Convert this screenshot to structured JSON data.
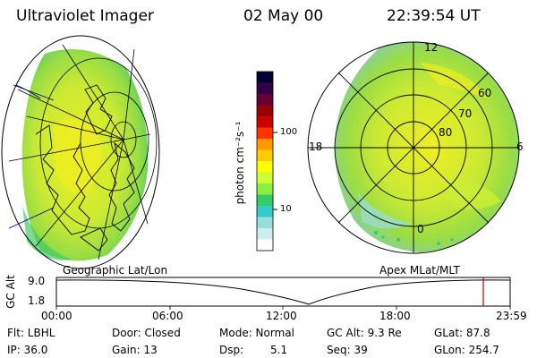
{
  "header": {
    "title": "Ultraviolet Imager",
    "date": "02 May 00",
    "time": "22:39:54 UT"
  },
  "colorbar": {
    "unit_label": "photon cm⁻²s⁻¹",
    "ticks": [
      "100",
      "10"
    ],
    "colors": [
      "#000033",
      "#330044",
      "#660033",
      "#990000",
      "#cc0000",
      "#ff3300",
      "#ff9900",
      "#ffcc00",
      "#ffff00",
      "#ccff33",
      "#88ee44",
      "#33cc66",
      "#33cccc",
      "#99dddd",
      "#cceeee",
      "#ffffff"
    ]
  },
  "left_map": {
    "label": "Geographic Lat/Lon"
  },
  "right_map": {
    "label": "Apex MLat/MLT",
    "mlt_labels": [
      "12",
      "18",
      "6",
      "0"
    ],
    "lat_labels": [
      "60",
      "70",
      "80"
    ]
  },
  "altitude_plot": {
    "ylabel": "GC Alt",
    "yticks": [
      "9.0",
      "1.8"
    ],
    "xticks": [
      "00:00",
      "06:00",
      "12:00",
      "18:00",
      "23:59"
    ],
    "marker_color": "#cc0000"
  },
  "info": {
    "flt": "Flt: LBHL",
    "ip": "IP: 36.0",
    "door": "Door: Closed",
    "gain": "Gain: 13",
    "mode": "Mode: Normal",
    "dsp_label": "Dsp:",
    "dsp_value": "5.1",
    "gcalt": "GC Alt: 9.3 Re",
    "seq": "Seq: 39",
    "glat": "GLat:  87.8",
    "glon": "GLon: 254.7"
  }
}
